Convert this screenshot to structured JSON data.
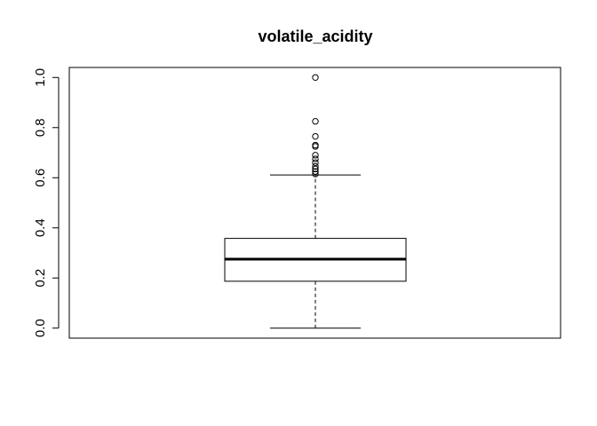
{
  "chart_data": {
    "type": "boxplot",
    "title": "volatile_acidity",
    "xlabel": "",
    "ylabel": "",
    "ylim": [
      -0.04,
      1.04
    ],
    "yticks": [
      0.0,
      0.2,
      0.4,
      0.6,
      0.8,
      1.0
    ],
    "ytick_labels": [
      "0.0",
      "0.2",
      "0.4",
      "0.6",
      "0.8",
      "1.0"
    ],
    "box": {
      "whisker_low": 0.0,
      "q1": 0.187,
      "median": 0.275,
      "q3": 0.358,
      "whisker_high": 0.611
    },
    "outliers": [
      0.615,
      0.625,
      0.635,
      0.645,
      0.66,
      0.675,
      0.69,
      0.725,
      0.73,
      0.765,
      0.825,
      1.0
    ]
  }
}
